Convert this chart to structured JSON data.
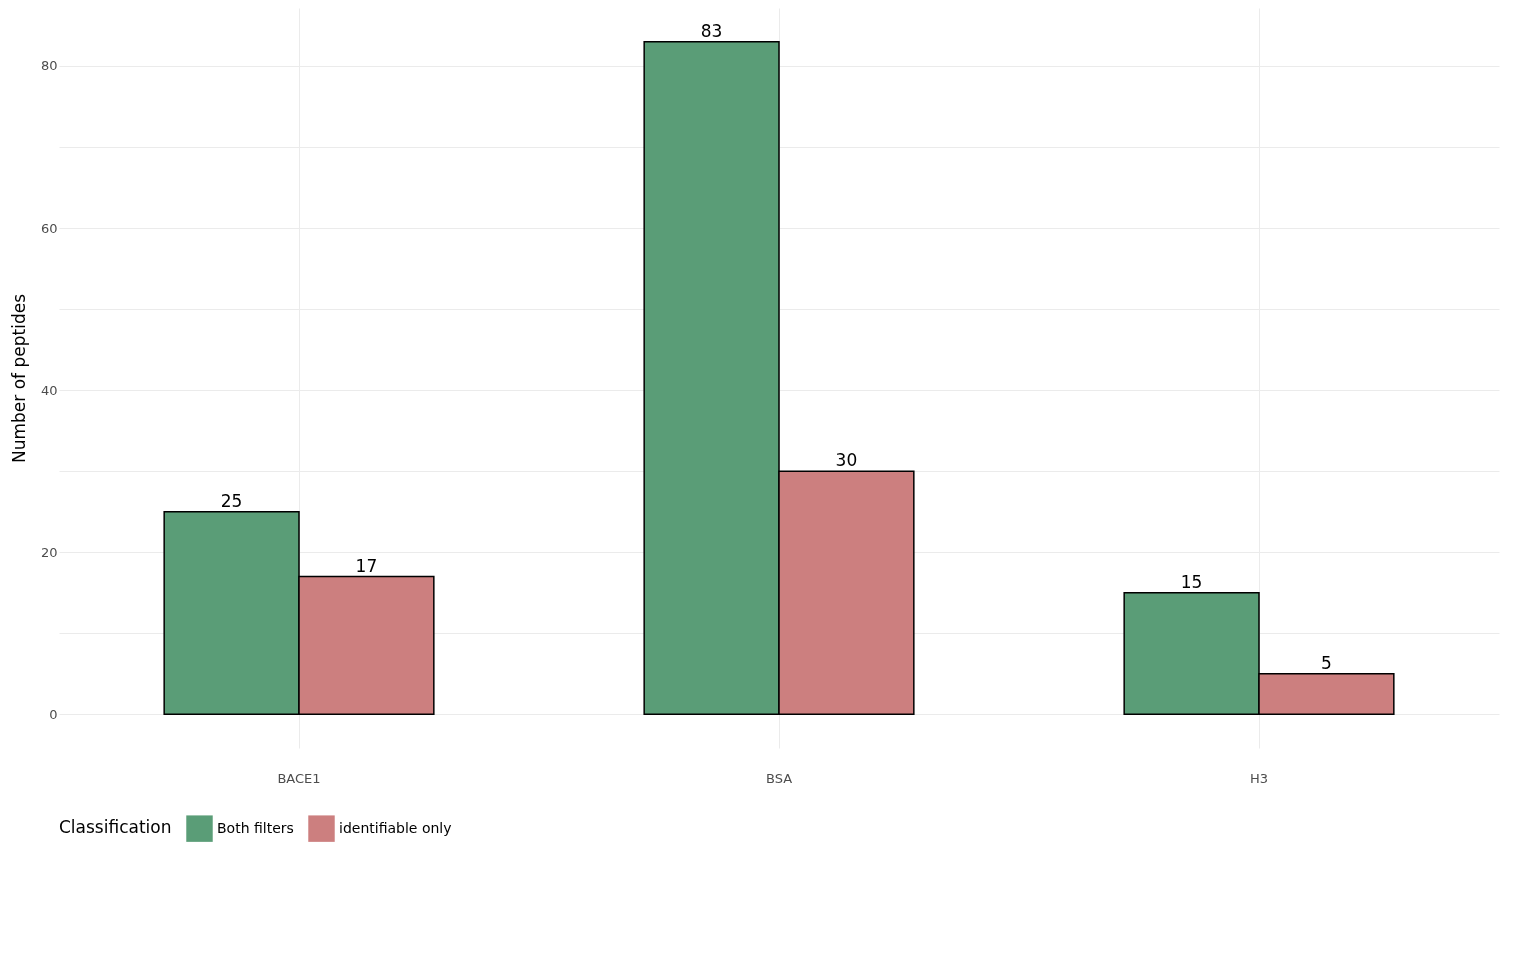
{
  "chart_data": {
    "type": "bar",
    "ylabel": "Number of peptides",
    "legend_title": "Classification",
    "categories": [
      "BACE1",
      "BSA",
      "H3"
    ],
    "series": [
      {
        "name": "Both filters",
        "color": "#5a9d77",
        "values": [
          25,
          83,
          15
        ]
      },
      {
        "name": "identifiable only",
        "color": "#cc7f7f",
        "values": [
          17,
          30,
          5
        ]
      }
    ],
    "ylim": [
      -4.15,
      87.15
    ],
    "yticks": [
      0,
      {
        "value": 10,
        "label": null
      },
      20,
      {
        "value": 30,
        "label": null
      },
      40,
      {
        "value": 50,
        "label": null
      },
      60,
      {
        "value": 70,
        "label": null
      },
      80
    ],
    "grid": true,
    "legend": "bottom",
    "data_labels": true
  }
}
